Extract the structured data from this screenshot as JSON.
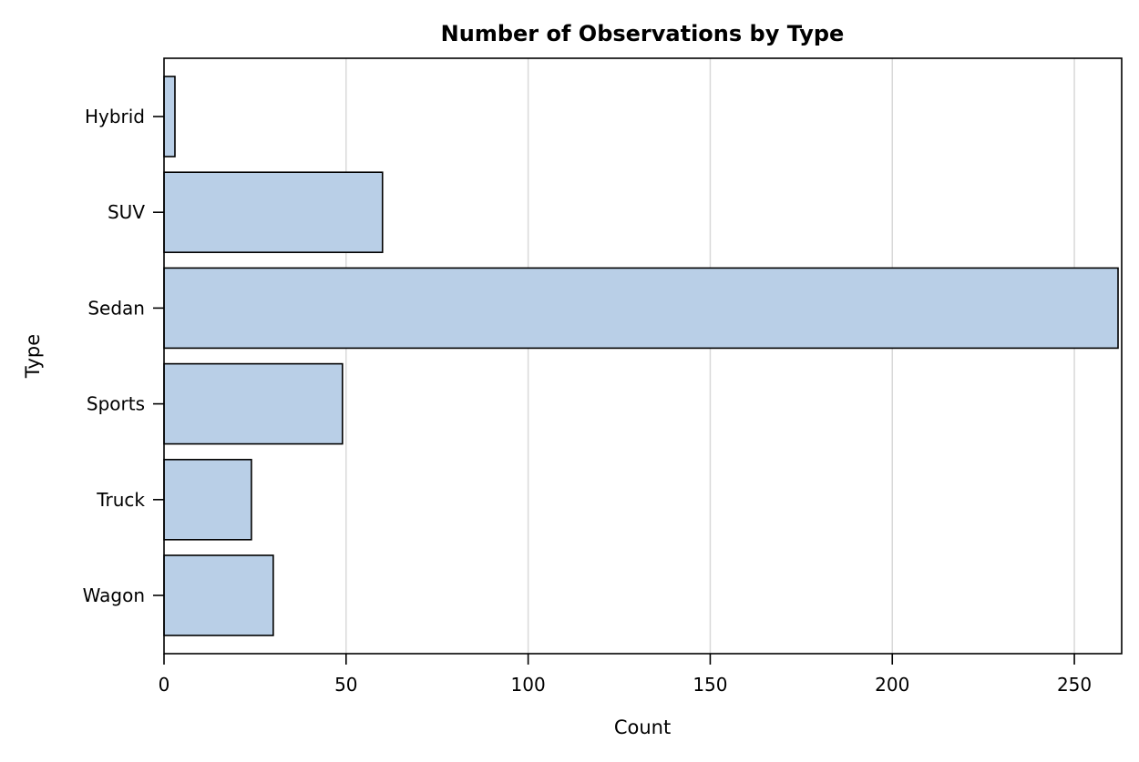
{
  "chart_data": {
    "type": "bar",
    "orientation": "horizontal",
    "title": "Number of Observations by Type",
    "xlabel": "Count",
    "ylabel": "Type",
    "categories": [
      "Hybrid",
      "SUV",
      "Sedan",
      "Sports",
      "Truck",
      "Wagon"
    ],
    "values": [
      3,
      60,
      262,
      49,
      24,
      30
    ],
    "xlim": [
      0,
      263
    ],
    "xticks": [
      0,
      50,
      100,
      150,
      200,
      250
    ],
    "grid": "vertical",
    "bar_color": "#b9cfe7",
    "bar_edge_color": "#000000",
    "gridline_color": "#d9d9d9"
  }
}
